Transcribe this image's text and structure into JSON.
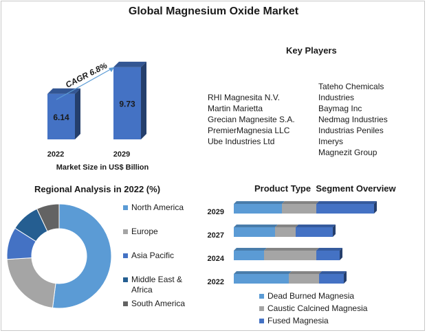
{
  "title": "Global Magnesium Oxide Market",
  "chart_data": [
    {
      "type": "bar",
      "categories": [
        "2022",
        "2029"
      ],
      "values": [
        6.14,
        9.73
      ],
      "value_labels": [
        "6.14",
        "9.73"
      ],
      "xlabel": "Market Size in US$ Billion",
      "ylabel": "",
      "ylim": [
        0,
        10.5
      ],
      "annotation": "CAGR 6.8%",
      "color": "#4472C4"
    },
    {
      "type": "pie",
      "title": "Regional Analysis in 2022 (%)",
      "labels": [
        "North America",
        "Europe",
        "Asia Pacific",
        "Middle East & Africa",
        "South America"
      ],
      "values": [
        52,
        22,
        10,
        9,
        7
      ],
      "colors": [
        "#5B9BD5",
        "#A5A5A5",
        "#4472C4",
        "#255E91",
        "#636363"
      ]
    },
    {
      "type": "bar",
      "orientation": "horizontal",
      "stacked": true,
      "title": "Product Type  Segment Overview",
      "categories": [
        "2029",
        "2027",
        "2024",
        "2022"
      ],
      "series": [
        {
          "name": "Dead Burned Magnesia",
          "values": [
            35,
            30,
            22,
            40
          ],
          "color": "#5B9BD5"
        },
        {
          "name": "Caustic Calcined Magnesia",
          "values": [
            25,
            15,
            38,
            22
          ],
          "color": "#A5A5A5"
        },
        {
          "name": "Fused Magnesia",
          "values": [
            42,
            27,
            17,
            18
          ],
          "color": "#4472C4"
        }
      ]
    }
  ],
  "key_players": {
    "title": "Key Players",
    "left": [
      "RHI Magnesita N.V.",
      "Martin Marietta",
      "Grecian Magnesite S.A.",
      "PremierMagnesia LLC",
      "Ube Industries Ltd"
    ],
    "right": [
      "Tateho Chemicals",
      "Industries",
      "Baymag Inc",
      "Nedmag Industries",
      "Industrias Peniles",
      "Imerys",
      "Magnezit Group"
    ]
  }
}
